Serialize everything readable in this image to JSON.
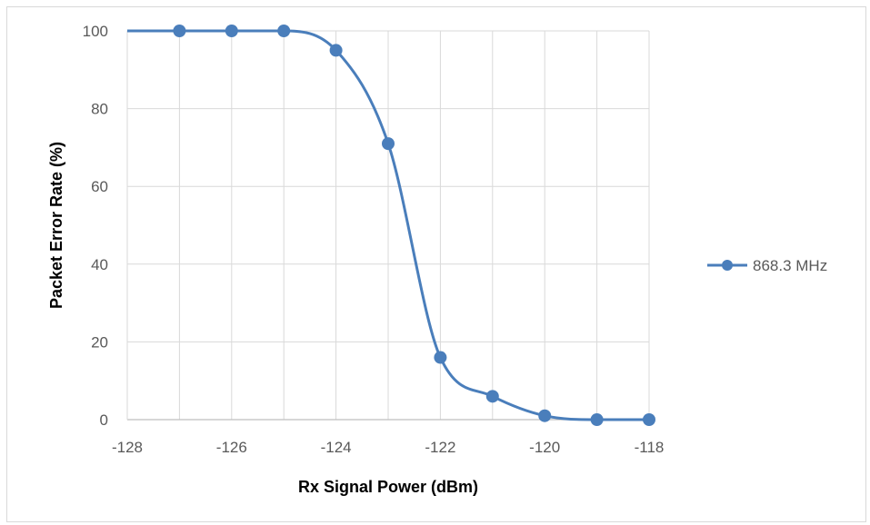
{
  "chart_data": {
    "type": "line",
    "title": "",
    "xlabel": "Rx Signal Power (dBm)",
    "ylabel": "Packet Error Rate (%)",
    "xlim": [
      -128,
      -118
    ],
    "ylim": [
      0,
      100
    ],
    "x_ticks": [
      "-128",
      "-126",
      "-124",
      "-122",
      "-120",
      "-118"
    ],
    "y_ticks": [
      "0",
      "20",
      "40",
      "60",
      "80",
      "100"
    ],
    "grid": true,
    "smooth": true,
    "legend_position": "right",
    "series": [
      {
        "name": "868.3 MHz",
        "color": "#4a7ebb",
        "x": [
          -127,
          -126,
          -125,
          -124,
          -123,
          -122,
          -121,
          -120,
          -119,
          -118
        ],
        "y": [
          100,
          100,
          100,
          95,
          71,
          16,
          6,
          1,
          0,
          0
        ]
      }
    ]
  }
}
